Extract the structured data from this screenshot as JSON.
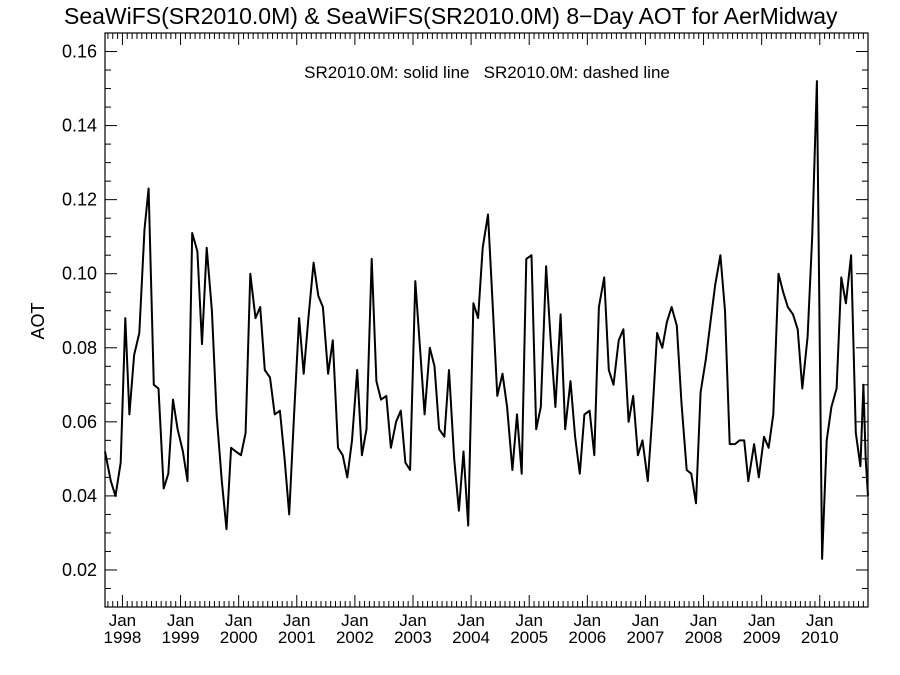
{
  "chart_data": {
    "type": "line",
    "title": "SeaWiFS(SR2010.0M) & SeaWiFS(SR2010.0M) 8−Day AOT for AerMidway",
    "legend_note": "SR2010.0M: solid line   SR2010.0M: dashed line",
    "legend_placement": "top-center",
    "ylabel": "AOT",
    "xlabel": "",
    "ylim": [
      0.01,
      0.165
    ],
    "xlim": [
      1997.7,
      2010.83
    ],
    "grid": false,
    "y_ticks": [
      0.02,
      0.04,
      0.06,
      0.08,
      0.1,
      0.12,
      0.14,
      0.16
    ],
    "y_tick_labels": [
      "0.02",
      "0.04",
      "0.06",
      "0.08",
      "0.10",
      "0.12",
      "0.14",
      "0.16"
    ],
    "x_ticks": [
      {
        "month": "Jan",
        "year": "1998",
        "x": 1998.0
      },
      {
        "month": "Jan",
        "year": "1999",
        "x": 1999.0
      },
      {
        "month": "Jan",
        "year": "2000",
        "x": 2000.0
      },
      {
        "month": "Jan",
        "year": "2001",
        "x": 2001.0
      },
      {
        "month": "Jan",
        "year": "2002",
        "x": 2002.0
      },
      {
        "month": "Jan",
        "year": "2003",
        "x": 2003.0
      },
      {
        "month": "Jan",
        "year": "2004",
        "x": 2004.0
      },
      {
        "month": "Jan",
        "year": "2005",
        "x": 2005.0
      },
      {
        "month": "Jan",
        "year": "2006",
        "x": 2006.0
      },
      {
        "month": "Jan",
        "year": "2007",
        "x": 2007.0
      },
      {
        "month": "Jan",
        "year": "2008",
        "x": 2008.0
      },
      {
        "month": "Jan",
        "year": "2009",
        "x": 2009.0
      },
      {
        "month": "Jan",
        "year": "2010",
        "x": 2010.0
      }
    ],
    "series": [
      {
        "style": "solid",
        "points": [
          [
            1997.7,
            0.052
          ],
          [
            1997.8,
            0.044
          ],
          [
            1997.88,
            0.04
          ],
          [
            1997.97,
            0.049
          ],
          [
            1998.05,
            0.088
          ],
          [
            1998.12,
            0.062
          ],
          [
            1998.2,
            0.078
          ],
          [
            1998.29,
            0.084
          ],
          [
            1998.38,
            0.112
          ],
          [
            1998.45,
            0.123
          ],
          [
            1998.54,
            0.07
          ],
          [
            1998.62,
            0.069
          ],
          [
            1998.71,
            0.042
          ],
          [
            1998.79,
            0.046
          ],
          [
            1998.87,
            0.066
          ],
          [
            1998.95,
            0.058
          ],
          [
            1999.04,
            0.052
          ],
          [
            1999.12,
            0.044
          ],
          [
            1999.2,
            0.111
          ],
          [
            1999.29,
            0.106
          ],
          [
            1999.37,
            0.081
          ],
          [
            1999.45,
            0.107
          ],
          [
            1999.54,
            0.09
          ],
          [
            1999.62,
            0.062
          ],
          [
            1999.71,
            0.044
          ],
          [
            1999.79,
            0.031
          ],
          [
            1999.87,
            0.053
          ],
          [
            1999.95,
            0.052
          ],
          [
            2000.04,
            0.051
          ],
          [
            2000.12,
            0.057
          ],
          [
            2000.2,
            0.1
          ],
          [
            2000.29,
            0.088
          ],
          [
            2000.37,
            0.091
          ],
          [
            2000.45,
            0.074
          ],
          [
            2000.54,
            0.072
          ],
          [
            2000.62,
            0.062
          ],
          [
            2000.71,
            0.063
          ],
          [
            2000.79,
            0.05
          ],
          [
            2000.87,
            0.035
          ],
          [
            2000.95,
            0.061
          ],
          [
            2001.04,
            0.088
          ],
          [
            2001.12,
            0.073
          ],
          [
            2001.2,
            0.088
          ],
          [
            2001.29,
            0.103
          ],
          [
            2001.37,
            0.094
          ],
          [
            2001.45,
            0.091
          ],
          [
            2001.54,
            0.073
          ],
          [
            2001.62,
            0.082
          ],
          [
            2001.71,
            0.053
          ],
          [
            2001.79,
            0.051
          ],
          [
            2001.87,
            0.045
          ],
          [
            2001.95,
            0.055
          ],
          [
            2002.04,
            0.074
          ],
          [
            2002.12,
            0.051
          ],
          [
            2002.2,
            0.058
          ],
          [
            2002.29,
            0.104
          ],
          [
            2002.37,
            0.071
          ],
          [
            2002.45,
            0.066
          ],
          [
            2002.54,
            0.067
          ],
          [
            2002.62,
            0.053
          ],
          [
            2002.71,
            0.06
          ],
          [
            2002.79,
            0.063
          ],
          [
            2002.87,
            0.049
          ],
          [
            2002.95,
            0.047
          ],
          [
            2003.04,
            0.098
          ],
          [
            2003.12,
            0.08
          ],
          [
            2003.2,
            0.062
          ],
          [
            2003.29,
            0.08
          ],
          [
            2003.37,
            0.075
          ],
          [
            2003.45,
            0.058
          ],
          [
            2003.54,
            0.056
          ],
          [
            2003.62,
            0.074
          ],
          [
            2003.71,
            0.05
          ],
          [
            2003.79,
            0.036
          ],
          [
            2003.87,
            0.052
          ],
          [
            2003.95,
            0.032
          ],
          [
            2004.04,
            0.092
          ],
          [
            2004.12,
            0.088
          ],
          [
            2004.2,
            0.107
          ],
          [
            2004.29,
            0.116
          ],
          [
            2004.37,
            0.092
          ],
          [
            2004.45,
            0.067
          ],
          [
            2004.54,
            0.073
          ],
          [
            2004.62,
            0.064
          ],
          [
            2004.71,
            0.047
          ],
          [
            2004.79,
            0.062
          ],
          [
            2004.87,
            0.046
          ],
          [
            2004.95,
            0.104
          ],
          [
            2005.04,
            0.105
          ],
          [
            2005.12,
            0.058
          ],
          [
            2005.2,
            0.064
          ],
          [
            2005.29,
            0.102
          ],
          [
            2005.37,
            0.082
          ],
          [
            2005.45,
            0.064
          ],
          [
            2005.54,
            0.089
          ],
          [
            2005.62,
            0.058
          ],
          [
            2005.71,
            0.071
          ],
          [
            2005.79,
            0.056
          ],
          [
            2005.87,
            0.046
          ],
          [
            2005.95,
            0.062
          ],
          [
            2006.04,
            0.063
          ],
          [
            2006.12,
            0.051
          ],
          [
            2006.2,
            0.091
          ],
          [
            2006.29,
            0.099
          ],
          [
            2006.37,
            0.074
          ],
          [
            2006.45,
            0.07
          ],
          [
            2006.54,
            0.082
          ],
          [
            2006.62,
            0.085
          ],
          [
            2006.71,
            0.06
          ],
          [
            2006.79,
            0.067
          ],
          [
            2006.87,
            0.051
          ],
          [
            2006.95,
            0.055
          ],
          [
            2007.04,
            0.044
          ],
          [
            2007.12,
            0.062
          ],
          [
            2007.2,
            0.084
          ],
          [
            2007.29,
            0.08
          ],
          [
            2007.37,
            0.087
          ],
          [
            2007.45,
            0.091
          ],
          [
            2007.54,
            0.086
          ],
          [
            2007.62,
            0.065
          ],
          [
            2007.71,
            0.047
          ],
          [
            2007.79,
            0.046
          ],
          [
            2007.87,
            0.038
          ],
          [
            2007.95,
            0.068
          ],
          [
            2008.04,
            0.077
          ],
          [
            2008.12,
            0.087
          ],
          [
            2008.2,
            0.097
          ],
          [
            2008.29,
            0.105
          ],
          [
            2008.37,
            0.09
          ],
          [
            2008.45,
            0.054
          ],
          [
            2008.54,
            0.054
          ],
          [
            2008.62,
            0.055
          ],
          [
            2008.7,
            0.055
          ],
          [
            2008.77,
            0.044
          ],
          [
            2008.87,
            0.054
          ],
          [
            2008.95,
            0.045
          ],
          [
            2009.04,
            0.056
          ],
          [
            2009.12,
            0.053
          ],
          [
            2009.2,
            0.062
          ],
          [
            2009.29,
            0.1
          ],
          [
            2009.37,
            0.095
          ],
          [
            2009.45,
            0.091
          ],
          [
            2009.54,
            0.089
          ],
          [
            2009.62,
            0.085
          ],
          [
            2009.7,
            0.069
          ],
          [
            2009.79,
            0.083
          ],
          [
            2009.87,
            0.11
          ],
          [
            2009.95,
            0.152
          ],
          [
            2010.04,
            0.023
          ],
          [
            2010.12,
            0.055
          ],
          [
            2010.2,
            0.064
          ],
          [
            2010.29,
            0.069
          ],
          [
            2010.37,
            0.099
          ],
          [
            2010.45,
            0.092
          ],
          [
            2010.54,
            0.105
          ],
          [
            2010.62,
            0.057
          ],
          [
            2010.7,
            0.048
          ],
          [
            2010.75,
            0.07
          ],
          [
            2010.79,
            0.05
          ],
          [
            2010.83,
            0.04
          ]
        ]
      }
    ]
  }
}
